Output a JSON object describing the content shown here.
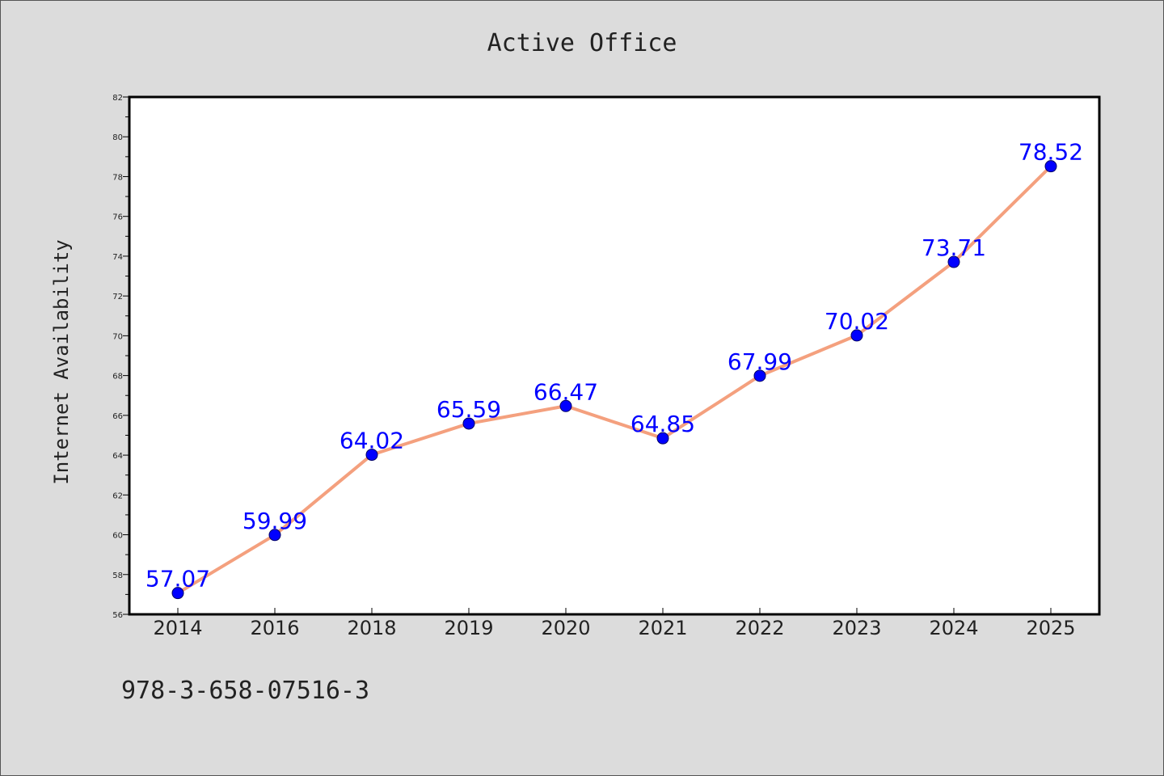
{
  "colors": {
    "background": "#dcdcdc",
    "plot_background": "#ffffff",
    "line": "#f4a07e",
    "marker": "#0000ff",
    "data_label": "#0000ff",
    "text": "#222222"
  },
  "footer": {
    "text": "978-3-658-07516-3"
  },
  "chart_data": {
    "type": "line",
    "title": "Active Office",
    "xlabel": "",
    "ylabel": "Internet Availability",
    "categories": [
      "2014",
      "2016",
      "2018",
      "2019",
      "2020",
      "2021",
      "2022",
      "2023",
      "2024",
      "2025"
    ],
    "series": [
      {
        "values": [
          57.07,
          59.99,
          64.02,
          65.59,
          66.47,
          64.85,
          67.99,
          70.02,
          73.71,
          78.52
        ]
      }
    ],
    "data_labels": [
      "57.07",
      "59.99",
      "64.02",
      "65.59",
      "66.47",
      "64.85",
      "67.99",
      "70.02",
      "73.71",
      "78.52"
    ],
    "ylim": [
      56,
      82
    ],
    "yticks": [
      56,
      58,
      60,
      62,
      64,
      66,
      68,
      70,
      72,
      74,
      76,
      78,
      80,
      82
    ],
    "grid": false,
    "legend": "none"
  }
}
